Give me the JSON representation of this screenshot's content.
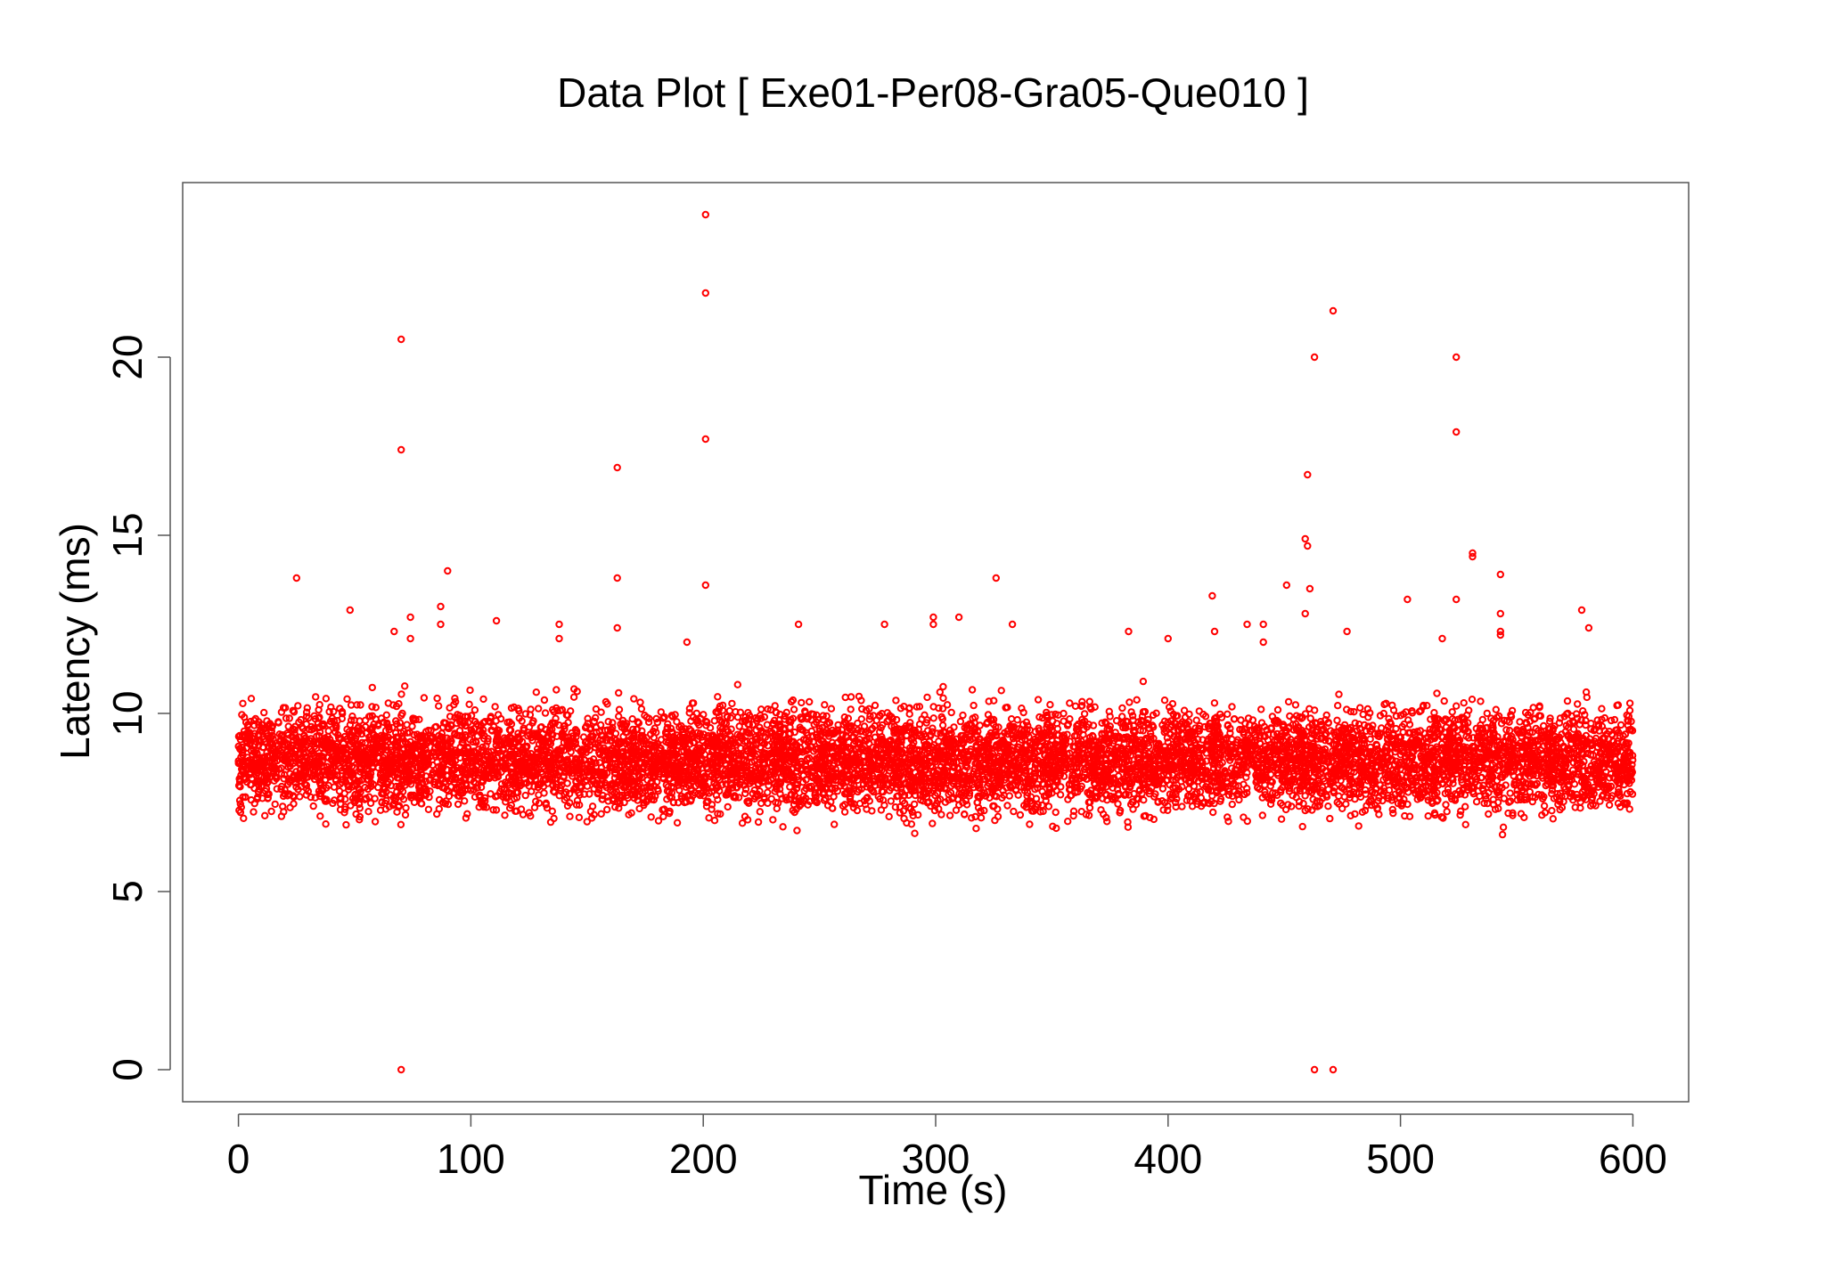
{
  "chart_data": {
    "type": "scatter",
    "title": "Data Plot [ Exe01-Per08-Gra05-Que010 ]",
    "xlabel": "Time (s)",
    "ylabel": "Latency (ms)",
    "xlim": [
      -24,
      624
    ],
    "ylim": [
      -0.9,
      24.9
    ],
    "xticks": [
      0,
      100,
      200,
      300,
      400,
      500,
      600
    ],
    "yticks": [
      0,
      5,
      10,
      15,
      20
    ],
    "xtick_labels": [
      "0",
      "100",
      "200",
      "300",
      "400",
      "500",
      "600"
    ],
    "ytick_labels": [
      "0",
      "5",
      "10",
      "15",
      "20"
    ],
    "grid": false,
    "legend": "none",
    "colors": {
      "points": "#ff0000",
      "frame": "#555555",
      "background": "#ffffff"
    },
    "marker": "open-circle",
    "series": [
      {
        "bands": [
          {
            "x_range": [
              0,
              200
            ],
            "y_range": [
              6.2,
              11.2
            ],
            "note_points": "dense"
          },
          {
            "x_range": [
              200,
              455
            ],
            "y_range": [
              6.1,
              11.3
            ],
            "note_points": "dense"
          },
          {
            "x_range": [
              455,
              600
            ],
            "y_range": [
              6.2,
              11.2
            ],
            "note_points": "dense"
          }
        ],
        "points": [
          [
            70,
            0.0
          ],
          [
            70,
            20.5
          ],
          [
            70,
            17.4
          ],
          [
            74,
            12.1
          ],
          [
            74,
            12.7
          ],
          [
            25,
            13.8
          ],
          [
            48,
            12.9
          ],
          [
            67,
            12.3
          ],
          [
            87,
            13.0
          ],
          [
            87,
            12.5
          ],
          [
            90,
            14.0
          ],
          [
            111,
            12.6
          ],
          [
            138,
            12.5
          ],
          [
            138,
            12.1
          ],
          [
            163,
            16.9
          ],
          [
            163,
            13.8
          ],
          [
            163,
            12.4
          ],
          [
            193,
            12.0
          ],
          [
            201,
            24.0
          ],
          [
            201,
            21.8
          ],
          [
            201,
            17.7
          ],
          [
            201,
            13.6
          ],
          [
            241,
            12.5
          ],
          [
            278,
            12.5
          ],
          [
            299,
            12.7
          ],
          [
            299,
            12.5
          ],
          [
            310,
            12.7
          ],
          [
            326,
            13.8
          ],
          [
            333,
            12.5
          ],
          [
            383,
            12.3
          ],
          [
            400,
            12.1
          ],
          [
            419,
            13.3
          ],
          [
            420,
            12.3
          ],
          [
            434,
            12.5
          ],
          [
            441,
            12.5
          ],
          [
            441,
            12.0
          ],
          [
            451,
            13.6
          ],
          [
            459,
            14.9
          ],
          [
            460,
            14.7
          ],
          [
            460,
            16.7
          ],
          [
            461,
            13.5
          ],
          [
            459,
            12.8
          ],
          [
            463,
            20.0
          ],
          [
            463,
            0.0
          ],
          [
            471,
            21.3
          ],
          [
            471,
            0.0
          ],
          [
            477,
            12.3
          ],
          [
            503,
            13.2
          ],
          [
            518,
            12.1
          ],
          [
            524,
            20.0
          ],
          [
            524,
            17.9
          ],
          [
            524,
            13.2
          ],
          [
            531,
            14.5
          ],
          [
            531,
            14.4
          ],
          [
            543,
            13.9
          ],
          [
            543,
            12.8
          ],
          [
            543,
            12.3
          ],
          [
            543,
            12.2
          ],
          [
            578,
            12.9
          ],
          [
            581,
            12.4
          ]
        ]
      }
    ]
  }
}
